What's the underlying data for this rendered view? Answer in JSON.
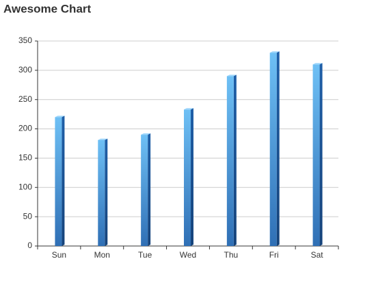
{
  "chart_data": {
    "type": "bar3d",
    "title": "Awesome Chart",
    "categories": [
      "Sun",
      "Mon",
      "Tue",
      "Wed",
      "Thu",
      "Fri",
      "Sat"
    ],
    "values": [
      220,
      181,
      190,
      233,
      290,
      330,
      310
    ],
    "color": "#4a8fd8",
    "ylim": [
      0,
      350
    ],
    "yticks": [
      0,
      50,
      100,
      150,
      200,
      250,
      300,
      350
    ],
    "grid": true
  }
}
